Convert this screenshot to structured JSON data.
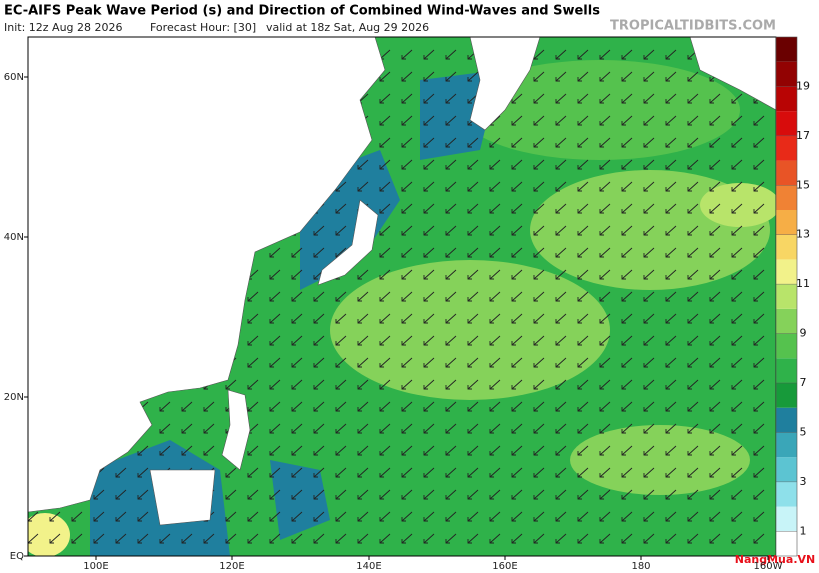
{
  "header": {
    "title": "EC-AIFS Peak Wave Period (s) and Direction of Combined Wind-Waves and Swells",
    "init": "Init: 12z Aug 28 2026",
    "forecast_hour": "Forecast Hour: [30]",
    "valid": "valid at 18z Sat, Aug 29 2026",
    "source": "TROPICALTIDBITS.COM"
  },
  "map": {
    "lat_labels": [
      "60N",
      "40N",
      "20N",
      "EQ"
    ],
    "lon_labels": [
      "100E",
      "120E",
      "140E",
      "160E",
      "180",
      "160W"
    ]
  },
  "colorbar": {
    "min": 0,
    "max": 21,
    "levels": [
      1,
      3,
      5,
      7,
      9,
      11,
      13,
      15,
      17,
      19
    ],
    "colors": [
      "#ffffff",
      "#c8f4f8",
      "#8ee0ea",
      "#5cc4d2",
      "#3aa6b8",
      "#1f7f9e",
      "#179a3a",
      "#2fb24a",
      "#55c24e",
      "#85d25a",
      "#b8e46a",
      "#f2f28a",
      "#f8d664",
      "#f6ae46",
      "#f08234",
      "#e85426",
      "#e82a18",
      "#d80c0c",
      "#b80404",
      "#920202",
      "#6a0000"
    ]
  },
  "watermark": "NangMua.VN"
}
